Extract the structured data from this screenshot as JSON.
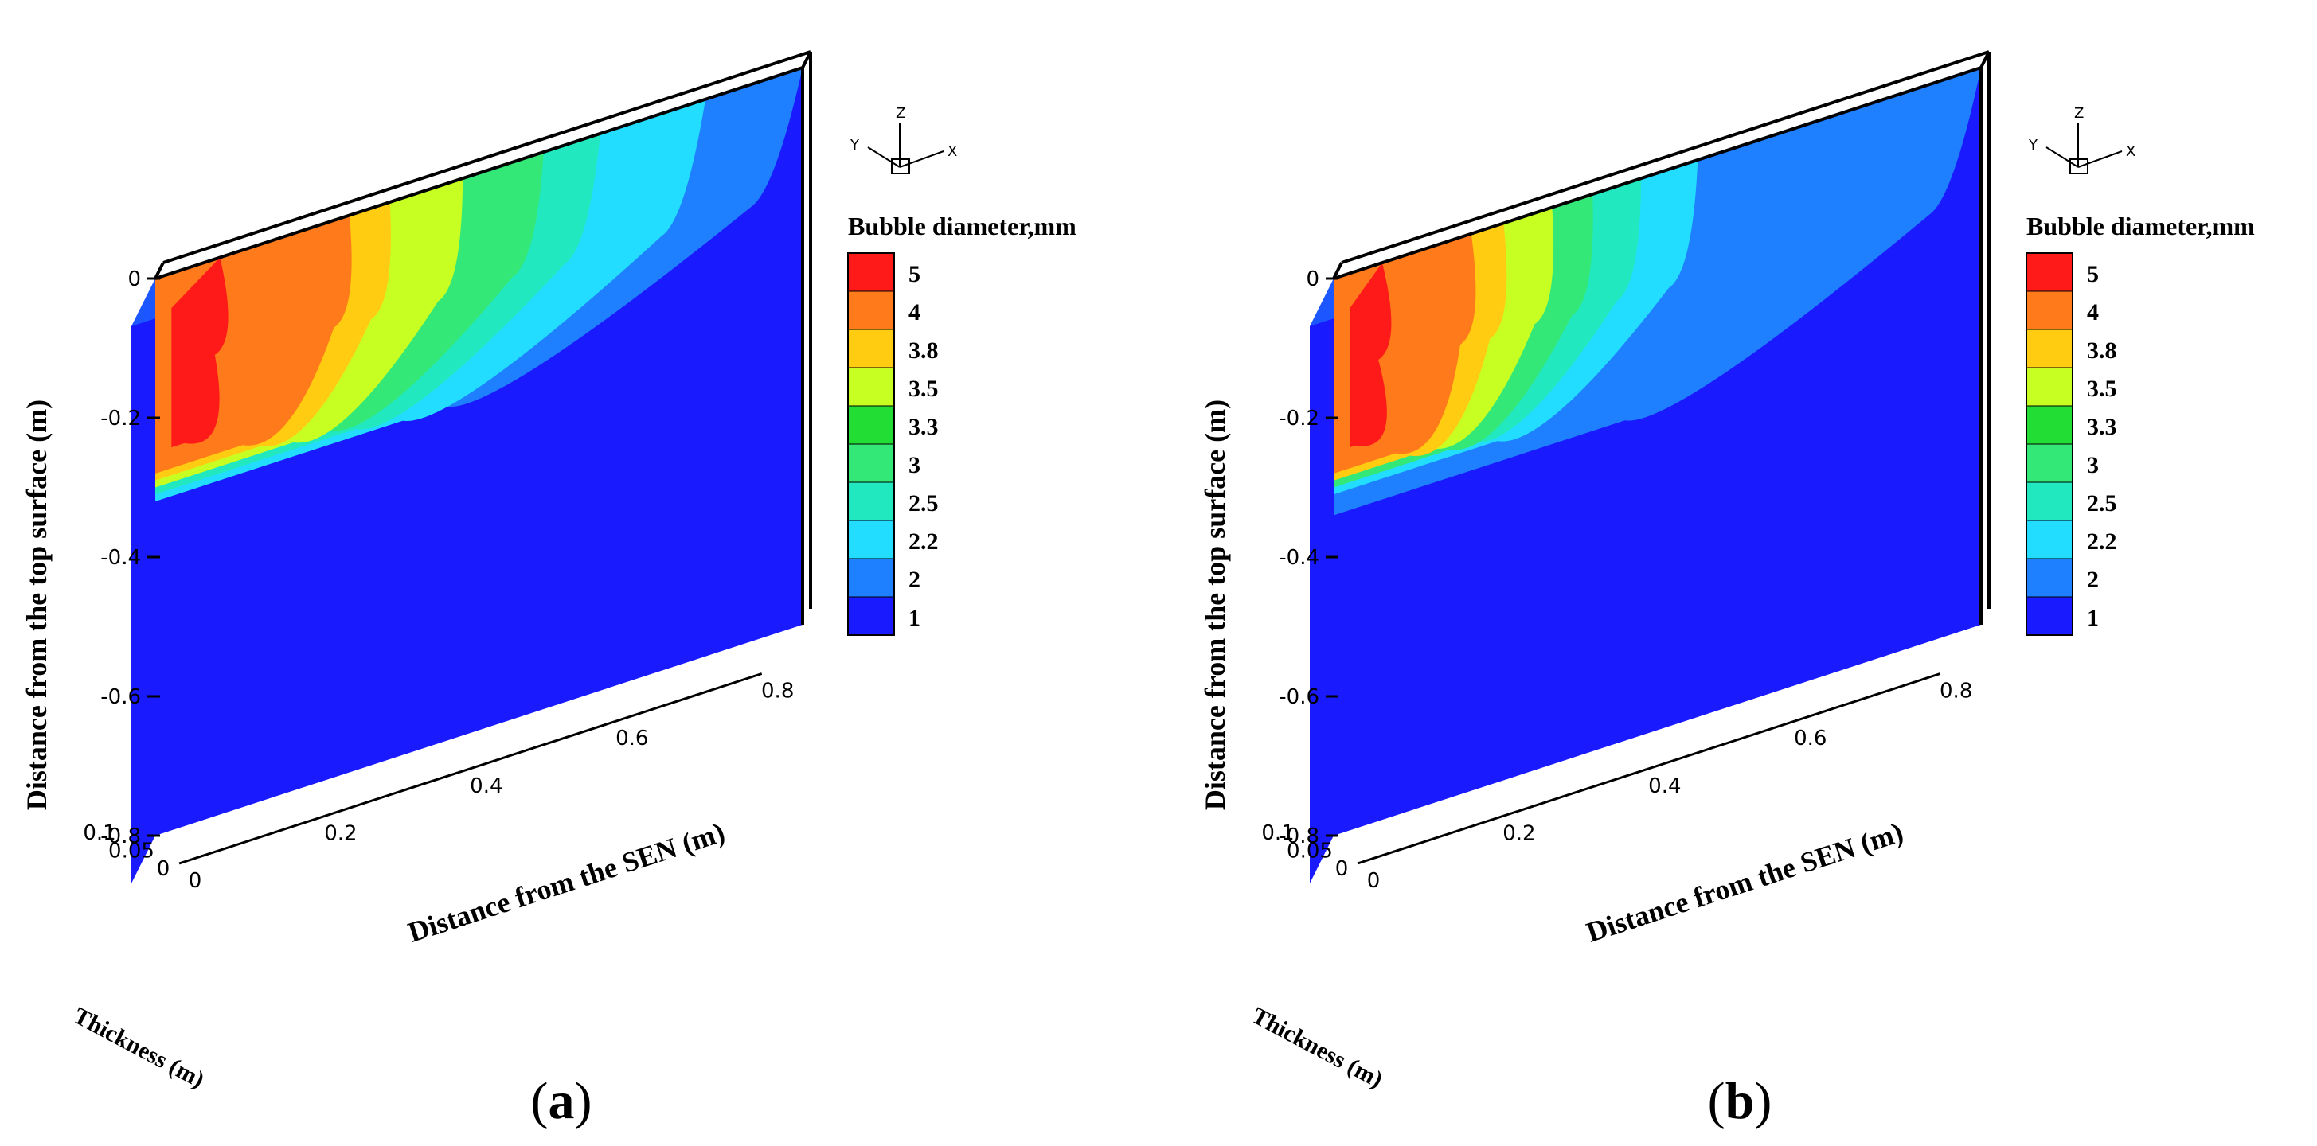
{
  "chart_data": [
    {
      "panel": "a",
      "type": "contour3d",
      "variable": "Bubble diameter",
      "colorbar": {
        "title": "Bubble diameter,mm",
        "levels": [
          "5",
          "4",
          "3.8",
          "3.5",
          "3.3",
          "3",
          "2.5",
          "2.2",
          "2",
          "1"
        ],
        "colors": [
          "#ff1a1a",
          "#ff7a1a",
          "#ffcc11",
          "#c8ff22",
          "#22dd33",
          "#33e877",
          "#22e8c0",
          "#22ddff",
          "#1e7fff",
          "#1a1aff"
        ]
      },
      "axes": {
        "x": {
          "label": "Distance from the SEN (m)",
          "ticks": [
            "0",
            "0.2",
            "0.4",
            "0.6",
            "0.8"
          ],
          "range": [
            0,
            0.8
          ]
        },
        "y": {
          "label": "Distance from the top surface (m)",
          "ticks": [
            "0",
            "-0.2",
            "-0.4",
            "-0.6",
            "-0.8"
          ],
          "range": [
            -0.8,
            0
          ]
        },
        "z": {
          "label": "Thickness (m)",
          "ticks": [
            "0",
            "0.05",
            "0.1"
          ],
          "range": [
            0,
            0.1
          ]
        }
      },
      "triad": {
        "z": "Z",
        "y": "Y",
        "x": "X"
      },
      "regions": [
        {
          "level": "2",
          "x_start": 0.0,
          "x_end": 0.8,
          "y_start": 0,
          "y_end": -0.32
        },
        {
          "level": "2.2",
          "x_start": 0.0,
          "x_end": 0.68,
          "y_start": 0,
          "y_end": -0.32
        },
        {
          "level": "2.5",
          "x_start": 0.0,
          "x_end": 0.55,
          "y_start": 0,
          "y_end": -0.31
        },
        {
          "level": "3",
          "x_start": 0.0,
          "x_end": 0.48,
          "y_start": 0,
          "y_end": -0.3
        },
        {
          "level": "3.5",
          "x_start": 0.0,
          "x_end": 0.38,
          "y_start": 0,
          "y_end": -0.3
        },
        {
          "level": "3.8",
          "x_start": 0.0,
          "x_end": 0.29,
          "y_start": 0,
          "y_end": -0.29
        },
        {
          "level": "4",
          "x_start": 0.0,
          "x_end": 0.24,
          "y_start": 0,
          "y_end": -0.28
        },
        {
          "level": "5",
          "x_start": 0.02,
          "x_end": 0.08,
          "y_start": -0.05,
          "y_end": -0.25
        }
      ]
    },
    {
      "panel": "b",
      "type": "contour3d",
      "variable": "Bubble diameter",
      "colorbar": {
        "title": "Bubble diameter,mm",
        "levels": [
          "5",
          "4",
          "3.8",
          "3.5",
          "3.3",
          "3",
          "2.5",
          "2.2",
          "2",
          "1"
        ],
        "colors": [
          "#ff1a1a",
          "#ff7a1a",
          "#ffcc11",
          "#c8ff22",
          "#22dd33",
          "#33e877",
          "#22e8c0",
          "#22ddff",
          "#1e7fff",
          "#1a1aff"
        ]
      },
      "axes": {
        "x": {
          "label": "Distance from the SEN (m)",
          "ticks": [
            "0",
            "0.2",
            "0.4",
            "0.6",
            "0.8"
          ],
          "range": [
            0,
            0.8
          ]
        },
        "y": {
          "label": "Distance from the top surface (m)",
          "ticks": [
            "0",
            "-0.2",
            "-0.4",
            "-0.6",
            "-0.8"
          ],
          "range": [
            -0.8,
            0
          ]
        },
        "z": {
          "label": "Thickness (m)",
          "ticks": [
            "0",
            "0.05",
            "0.1"
          ],
          "range": [
            0,
            0.1
          ]
        }
      },
      "triad": {
        "z": "Z",
        "y": "Y",
        "x": "X"
      },
      "regions": [
        {
          "level": "2",
          "x_start": 0.0,
          "x_end": 0.8,
          "y_start": 0,
          "y_end": -0.34
        },
        {
          "level": "2.2",
          "x_start": 0.0,
          "x_end": 0.45,
          "y_start": 0,
          "y_end": -0.31
        },
        {
          "level": "2.5",
          "x_start": 0.0,
          "x_end": 0.38,
          "y_start": 0,
          "y_end": -0.3
        },
        {
          "level": "3",
          "x_start": 0.0,
          "x_end": 0.32,
          "y_start": 0,
          "y_end": -0.3
        },
        {
          "level": "3.5",
          "x_start": 0.0,
          "x_end": 0.27,
          "y_start": 0,
          "y_end": -0.29
        },
        {
          "level": "3.8",
          "x_start": 0.0,
          "x_end": 0.21,
          "y_start": 0,
          "y_end": -0.29
        },
        {
          "level": "4",
          "x_start": 0.0,
          "x_end": 0.17,
          "y_start": 0,
          "y_end": -0.28
        },
        {
          "level": "5",
          "x_start": 0.02,
          "x_end": 0.06,
          "y_start": -0.05,
          "y_end": -0.25
        }
      ]
    }
  ],
  "subfigures": [
    {
      "open": "(",
      "letter": "a",
      "close": ")"
    },
    {
      "open": "(",
      "letter": "b",
      "close": ")"
    }
  ]
}
